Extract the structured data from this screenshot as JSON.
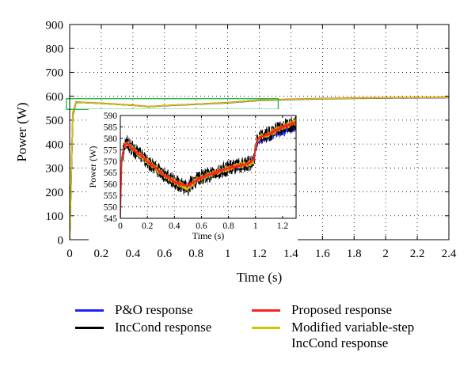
{
  "chart_data": [
    {
      "type": "line",
      "xlabel": "Time (s)",
      "ylabel": "Power (W)",
      "xlim": [
        0,
        2.4
      ],
      "ylim": [
        0,
        900
      ],
      "xticks": [
        0,
        0.2,
        0.4,
        0.6,
        0.8,
        1,
        1.2,
        1.4,
        1.6,
        1.8,
        2,
        2.2,
        2.4
      ],
      "xtick_labels": [
        "0",
        "0.2",
        "0.4",
        "0.6",
        "0.8",
        "1",
        "1.2",
        "1.4",
        "1.6",
        "1.8",
        "2",
        "2.2",
        "2.4"
      ],
      "yticks": [
        0,
        100,
        200,
        300,
        400,
        500,
        600,
        700,
        800,
        900
      ],
      "ytick_labels": [
        "0",
        "100",
        "200",
        "300",
        "400",
        "500",
        "600",
        "700",
        "800",
        "900"
      ],
      "grid": "dotted",
      "series": [
        {
          "name": "P&O response",
          "color": "#1f1fff",
          "x": [
            0,
            0.02,
            0.04,
            0.06,
            0.1,
            0.2,
            0.3,
            0.4,
            0.5,
            0.6,
            0.8,
            1.0,
            1.2,
            1.4,
            1.6,
            1.8,
            2.0,
            2.2,
            2.4
          ],
          "y": [
            0,
            520,
            574,
            574,
            573,
            570,
            566,
            562,
            556,
            560,
            566,
            572,
            582,
            586,
            589,
            591,
            592,
            593,
            594
          ]
        },
        {
          "name": "IncCond response",
          "color": "#000000",
          "x": [
            0,
            0.02,
            0.04,
            0.06,
            0.1,
            0.2,
            0.3,
            0.4,
            0.5,
            0.6,
            0.8,
            1.0,
            1.2,
            1.4,
            1.6,
            1.8,
            2.0,
            2.2,
            2.4
          ],
          "y": [
            0,
            520,
            576,
            575,
            573,
            570,
            566,
            562,
            556,
            561,
            567,
            573,
            583,
            587,
            590,
            592,
            593,
            594,
            595
          ]
        },
        {
          "name": "Proposed response",
          "color": "#ff2020",
          "x": [
            0,
            0.02,
            0.04,
            0.06,
            0.1,
            0.2,
            0.3,
            0.4,
            0.5,
            0.6,
            0.8,
            1.0,
            1.2,
            1.4,
            1.6,
            1.8,
            2.0,
            2.2,
            2.4
          ],
          "y": [
            0,
            530,
            577,
            576,
            574,
            571,
            567,
            563,
            557,
            561,
            567,
            574,
            584,
            588,
            591,
            593,
            594,
            595,
            596
          ]
        },
        {
          "name": "Modified variable-step\nIncCond response",
          "color": "#c8c800",
          "x": [
            0,
            0.02,
            0.04,
            0.06,
            0.1,
            0.2,
            0.3,
            0.4,
            0.5,
            0.6,
            0.8,
            1.0,
            1.2,
            1.4,
            1.6,
            1.8,
            2.0,
            2.2,
            2.4
          ],
          "y": [
            0,
            525,
            576,
            575,
            573,
            570,
            566,
            562,
            556,
            561,
            567,
            573,
            583,
            587,
            590,
            592,
            593,
            594,
            595
          ]
        }
      ],
      "zoom_box": {
        "x": [
          -0.02,
          1.32
        ],
        "y": [
          545,
          590
        ],
        "color": "#22bb44"
      }
    },
    {
      "type": "line",
      "role": "inset",
      "xlabel": "Time (s)",
      "ylabel": "Power (W)",
      "xlim": [
        0,
        1.3
      ],
      "ylim": [
        545,
        590
      ],
      "xticks": [
        0,
        0.2,
        0.4,
        0.6,
        0.8,
        1,
        1.2
      ],
      "xtick_labels": [
        "0",
        "0.2",
        "0.4",
        "0.6",
        "0.8",
        "1",
        "1.2"
      ],
      "yticks": [
        545,
        550,
        555,
        560,
        565,
        570,
        575,
        580,
        585,
        590
      ],
      "ytick_labels": [
        "545",
        "550",
        "555",
        "560",
        "565",
        "570",
        "575",
        "580",
        "585",
        "590"
      ],
      "grid": "dotted",
      "series": [
        {
          "name": "P&O response",
          "color": "#1f1fff",
          "noise": 2.2,
          "x": [
            0,
            0.01,
            0.03,
            0.05,
            0.08,
            0.1,
            0.2,
            0.3,
            0.4,
            0.5,
            0.52,
            0.6,
            0.8,
            0.95,
            0.99,
            1.0,
            1.02,
            1.1,
            1.2,
            1.3
          ],
          "y": [
            545,
            570,
            577,
            578,
            576,
            575,
            570,
            565,
            561,
            558,
            560,
            563,
            567,
            569,
            570,
            576,
            579,
            581,
            583,
            585
          ]
        },
        {
          "name": "IncCond response",
          "color": "#000000",
          "noise": 3.5,
          "x": [
            0,
            0.01,
            0.03,
            0.05,
            0.08,
            0.1,
            0.2,
            0.3,
            0.4,
            0.5,
            0.52,
            0.6,
            0.8,
            0.95,
            0.99,
            1.0,
            1.02,
            1.1,
            1.2,
            1.3
          ],
          "y": [
            545,
            570,
            577,
            578,
            576,
            575,
            570,
            565,
            561,
            558,
            560,
            563,
            567,
            569,
            570,
            576,
            580,
            582,
            585,
            587
          ]
        },
        {
          "name": "Modified variable-step\nIncCond response",
          "color": "#c8c800",
          "noise": 1.6,
          "x": [
            0,
            0.01,
            0.03,
            0.05,
            0.08,
            0.1,
            0.2,
            0.3,
            0.4,
            0.5,
            0.52,
            0.6,
            0.8,
            0.95,
            0.99,
            1.0,
            1.02,
            1.1,
            1.2,
            1.3
          ],
          "y": [
            545,
            570,
            577,
            578,
            576,
            575,
            570,
            565,
            561,
            558,
            560,
            563,
            567,
            569,
            570,
            576,
            580,
            582,
            585,
            587
          ]
        },
        {
          "name": "Proposed response",
          "color": "#ff2020",
          "noise": 0.4,
          "x": [
            0,
            0.01,
            0.03,
            0.05,
            0.08,
            0.1,
            0.2,
            0.3,
            0.4,
            0.5,
            0.52,
            0.6,
            0.8,
            0.95,
            0.99,
            1.0,
            1.02,
            1.1,
            1.2,
            1.3
          ],
          "y": [
            545,
            571,
            577,
            578,
            576,
            575,
            570,
            565,
            561,
            559,
            560,
            563,
            567,
            569,
            571,
            576,
            580,
            582,
            585,
            587
          ]
        }
      ]
    }
  ],
  "legend": {
    "items": [
      {
        "label": "P&O response",
        "color": "#1f1fff"
      },
      {
        "label": "Proposed response",
        "color": "#ff2020"
      },
      {
        "label": "IncCond response",
        "color": "#000000"
      },
      {
        "label": "Modified variable-step\nIncCond response",
        "color": "#c8c800"
      }
    ]
  }
}
